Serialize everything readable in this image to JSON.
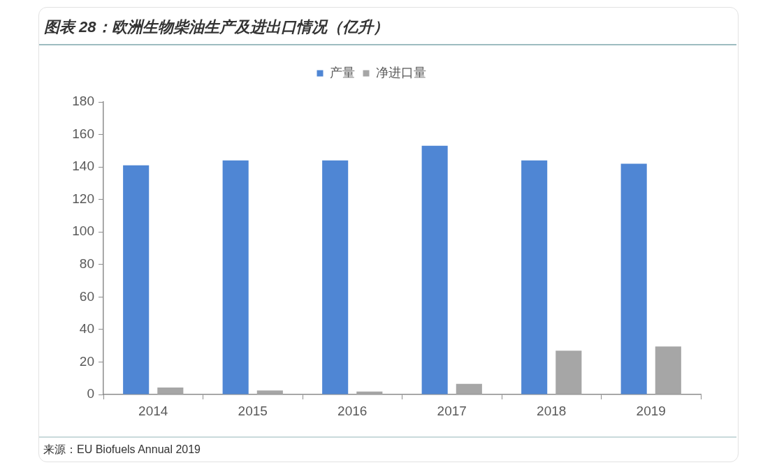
{
  "chart_data": {
    "type": "bar",
    "title": "图表 28：欧洲生物柴油生产及进出口情况（亿升）",
    "categories": [
      "2014",
      "2015",
      "2016",
      "2017",
      "2018",
      "2019"
    ],
    "series": [
      {
        "name": "产量",
        "color": "#4f86d4",
        "values": [
          141,
          144,
          144,
          153,
          144,
          142
        ]
      },
      {
        "name": "净进口量",
        "color": "#a6a6a6",
        "values": [
          4.3,
          2.5,
          1.8,
          6.5,
          27,
          29.5
        ]
      }
    ],
    "ylim": [
      0,
      180
    ],
    "yticks": [
      0,
      20,
      40,
      60,
      80,
      100,
      120,
      140,
      160,
      180
    ],
    "grid": false,
    "legend": "top",
    "annotations": [
      "来源：EU Biofuels Annual 2019"
    ]
  }
}
